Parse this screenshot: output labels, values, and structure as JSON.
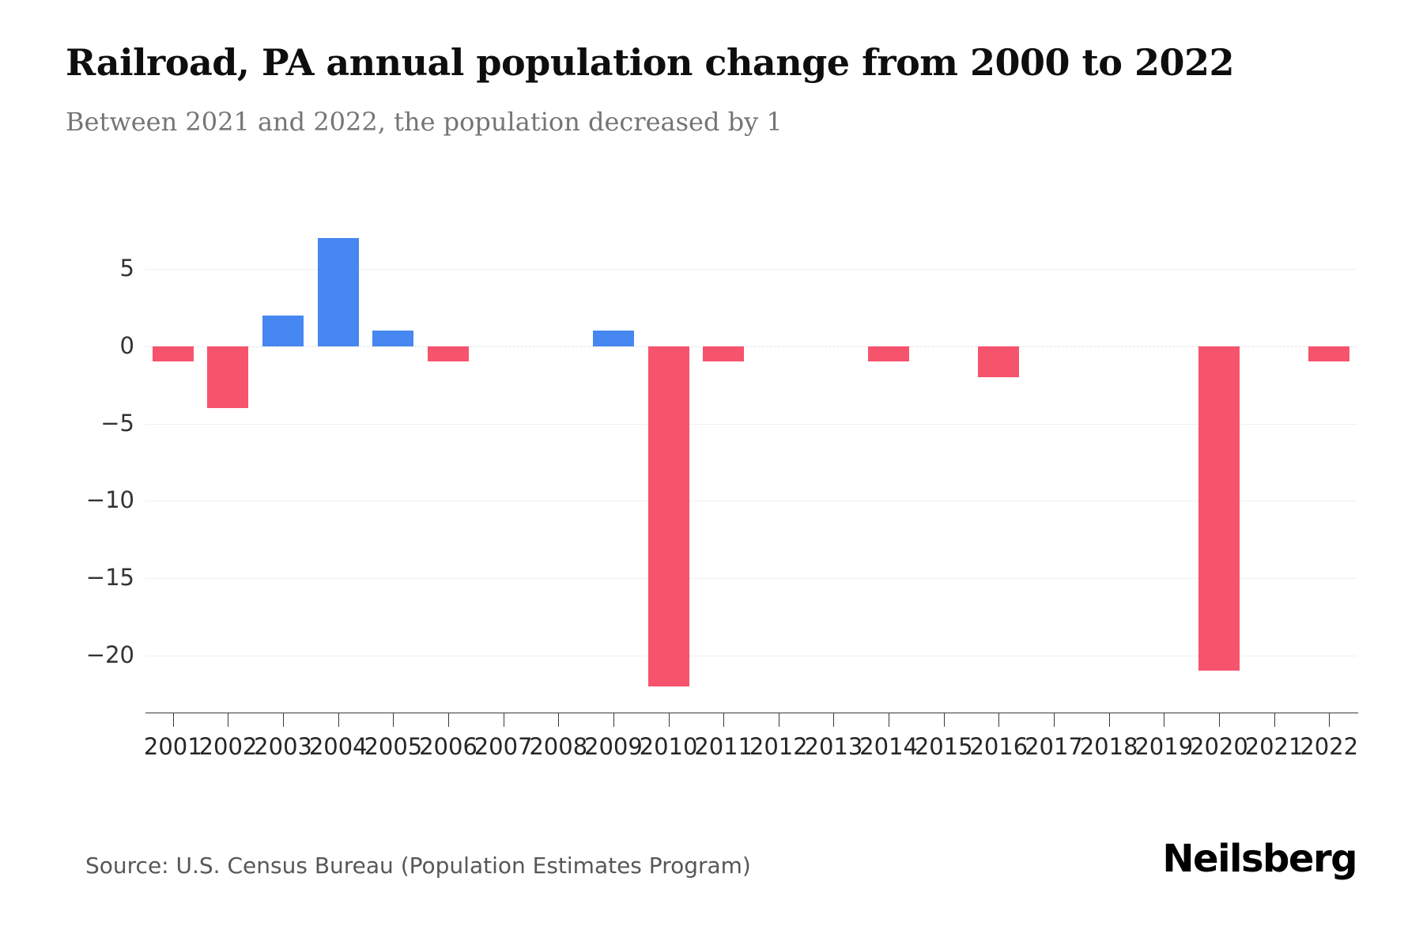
{
  "header": {
    "title": "Railroad, PA annual population change from 2000 to 2022",
    "subtitle": "Between 2021 and 2022, the population decreased by 1"
  },
  "footer": {
    "source": "Source: U.S. Census Bureau (Population Estimates Program)",
    "brand": "Neilsberg"
  },
  "chart_data": {
    "type": "bar",
    "title": "Railroad, PA annual population change from 2000 to 2022",
    "subtitle": "Between 2021 and 2022, the population decreased by 1",
    "categories": [
      "2001",
      "2002",
      "2003",
      "2004",
      "2005",
      "2006",
      "2007",
      "2008",
      "2009",
      "2010",
      "2011",
      "2012",
      "2013",
      "2014",
      "2015",
      "2016",
      "2017",
      "2018",
      "2019",
      "2020",
      "2021",
      "2022"
    ],
    "values": [
      -1,
      -4,
      2,
      7,
      1,
      -1,
      0,
      0,
      1,
      -22,
      -1,
      0,
      0,
      -1,
      0,
      -2,
      0,
      0,
      0,
      -21,
      0,
      -1
    ],
    "xlabel": "",
    "ylabel": "",
    "ylim": [
      -23.7,
      9
    ],
    "yticks": [
      5,
      0,
      -5,
      -10,
      -15,
      -20
    ],
    "grid": "horizontal",
    "legend": "none",
    "positive_color": "#4687f1",
    "negative_color": "#f6536d",
    "axis_color": "#3a3a3a"
  }
}
